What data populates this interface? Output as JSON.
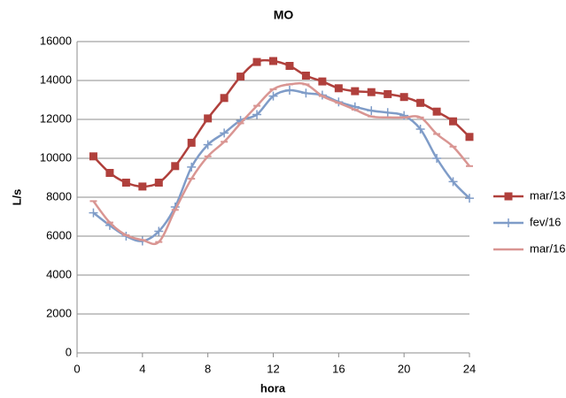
{
  "chart_data": {
    "type": "line",
    "title": "MO",
    "x_label": "hora",
    "y_label": "L/s",
    "xlim": [
      0,
      24
    ],
    "xticks": [
      0,
      4,
      8,
      12,
      16,
      20,
      24
    ],
    "ylim": [
      0,
      16000
    ],
    "yticks": [
      0,
      2000,
      4000,
      6000,
      8000,
      10000,
      12000,
      14000,
      16000
    ],
    "grid": true,
    "legend": "right",
    "smooth": true,
    "x": [
      1,
      2,
      3,
      4,
      5,
      6,
      7,
      8,
      9,
      10,
      11,
      12,
      13,
      14,
      15,
      16,
      17,
      18,
      19,
      20,
      21,
      22,
      23,
      24
    ],
    "series": [
      {
        "name": "mar/13",
        "color": "#b0403c",
        "marker": "square",
        "values": [
          10100,
          9250,
          8750,
          8550,
          8750,
          9600,
          10800,
          12050,
          13100,
          14200,
          14950,
          15000,
          14750,
          14250,
          13950,
          13600,
          13450,
          13400,
          13300,
          13150,
          12850,
          12400,
          11900,
          11100
        ]
      },
      {
        "name": "fev/16",
        "color": "#7f9cc8",
        "marker": "plus",
        "values": [
          7200,
          6550,
          6000,
          5750,
          6250,
          7500,
          9550,
          10700,
          11300,
          11950,
          12250,
          13200,
          13500,
          13350,
          13250,
          12900,
          12650,
          12450,
          12350,
          12200,
          11500,
          10000,
          8800,
          7950
        ]
      },
      {
        "name": "mar/16",
        "color": "#d99592",
        "marker": "dash",
        "values": [
          7800,
          6700,
          6050,
          5800,
          5700,
          7350,
          8950,
          10100,
          10850,
          11800,
          12700,
          13550,
          13800,
          13800,
          13200,
          12850,
          12500,
          12150,
          12100,
          12100,
          12100,
          11250,
          10600,
          9600
        ]
      }
    ]
  }
}
